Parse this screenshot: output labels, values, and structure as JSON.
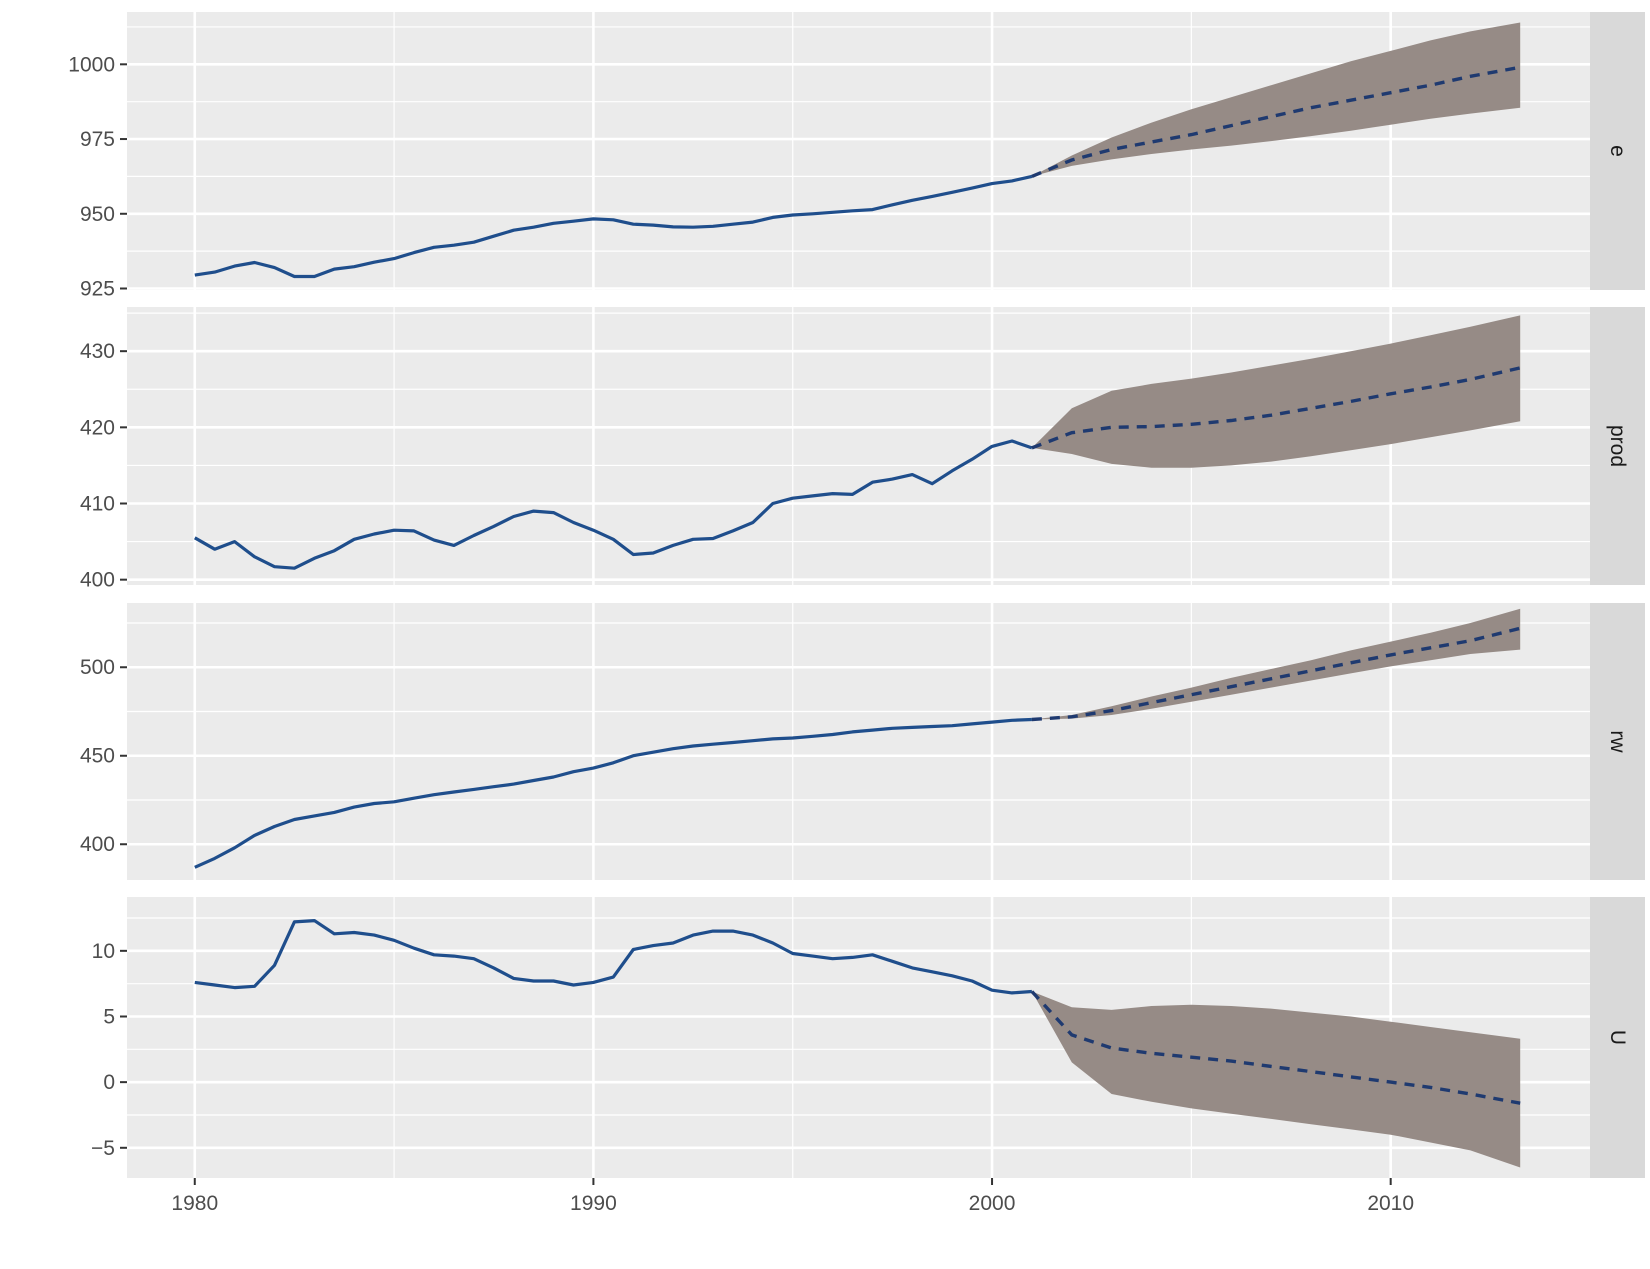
{
  "chart_data": {
    "type": "line",
    "title": "",
    "xlabel": "",
    "ylabel": "",
    "x_ticks": [
      1980,
      1990,
      2000,
      2010
    ],
    "x_range": [
      1978.3,
      2015.0
    ],
    "x_minor": [
      1985,
      1995,
      2005
    ],
    "grid": true,
    "legend": "none",
    "colors": {
      "panel_bg": "#EBEBEB",
      "strip_bg": "#D9D9D9",
      "grid": "#FFFFFF",
      "line": "#1F4E8C",
      "forecast_band": "#968B86",
      "text": "#4D4D4D"
    },
    "panels": [
      {
        "strip": "e",
        "y_range": [
          924.5,
          1017.5
        ],
        "y_ticks": [
          {
            "value": 925,
            "label": "925"
          },
          {
            "value": 950,
            "label": "950"
          },
          {
            "value": 975,
            "label": "975"
          },
          {
            "value": 1000,
            "label": "1000"
          }
        ],
        "history": {
          "x": [
            1980,
            1980.5,
            1981,
            1981.5,
            1982,
            1982.5,
            1983,
            1983.5,
            1984,
            1984.5,
            1985,
            1985.5,
            1986,
            1986.5,
            1987,
            1987.5,
            1988,
            1988.5,
            1989,
            1989.5,
            1990,
            1990.5,
            1991,
            1991.5,
            1992,
            1992.5,
            1993,
            1993.5,
            1994,
            1994.5,
            1995,
            1995.5,
            1996,
            1996.5,
            1997,
            1997.5,
            1998,
            1998.5,
            1999,
            1999.5,
            2000,
            2000.5,
            2001
          ],
          "y": [
            929.5,
            930.5,
            932.5,
            933.7,
            932,
            929,
            929,
            931.5,
            932.3,
            933.8,
            935,
            937,
            938.8,
            939.5,
            940.5,
            942.5,
            944.5,
            945.5,
            946.8,
            947.5,
            948.3,
            948,
            946.5,
            946.2,
            945.6,
            945.5,
            945.8,
            946.5,
            947.2,
            948.8,
            949.6,
            950,
            950.5,
            951,
            951.4,
            953,
            954.5,
            955.8,
            957.2,
            958.6,
            960.1,
            961,
            962.5
          ]
        },
        "forecast": {
          "x": [
            2001,
            2002,
            2003,
            2004,
            2005,
            2006,
            2007,
            2008,
            2009,
            2010,
            2011,
            2012,
            2013.25
          ],
          "mean": [
            962.5,
            968,
            971.5,
            974,
            976.5,
            979.5,
            982.5,
            985.5,
            988,
            990.5,
            993,
            996,
            999
          ],
          "lower": [
            962.5,
            966,
            968.2,
            970,
            971.5,
            972.8,
            974.3,
            976,
            977.8,
            979.8,
            981.8,
            983.5,
            985.5
          ],
          "upper": [
            962.5,
            969.5,
            975.5,
            980.5,
            985,
            989,
            993,
            997,
            1001,
            1004.5,
            1008,
            1011,
            1014
          ]
        }
      },
      {
        "strip": "prod",
        "y_range": [
          399.3,
          435.8
        ],
        "y_ticks": [
          {
            "value": 400,
            "label": "400"
          },
          {
            "value": 410,
            "label": "410"
          },
          {
            "value": 420,
            "label": "420"
          },
          {
            "value": 430,
            "label": "430"
          }
        ],
        "history": {
          "x": [
            1980,
            1980.5,
            1981,
            1981.5,
            1982,
            1982.5,
            1983,
            1983.5,
            1984,
            1984.5,
            1985,
            1985.5,
            1986,
            1986.5,
            1987,
            1987.5,
            1988,
            1988.5,
            1989,
            1989.5,
            1990,
            1990.5,
            1991,
            1991.5,
            1992,
            1992.5,
            1993,
            1993.5,
            1994,
            1994.5,
            1995,
            1995.5,
            1996,
            1996.5,
            1997,
            1997.5,
            1998,
            1998.5,
            1999,
            1999.5,
            2000,
            2000.5,
            2001
          ],
          "y": [
            405.5,
            404,
            405,
            403,
            401.7,
            401.5,
            402.8,
            403.8,
            405.3,
            406,
            406.5,
            406.4,
            405.2,
            404.5,
            405.8,
            407,
            408.3,
            409,
            408.8,
            407.5,
            406.5,
            405.3,
            403.3,
            403.5,
            404.5,
            405.3,
            405.4,
            406.4,
            407.5,
            410,
            410.7,
            411,
            411.3,
            411.2,
            412.8,
            413.2,
            413.8,
            412.6,
            414.3,
            415.8,
            417.5,
            418.2,
            417.3
          ]
        },
        "forecast": {
          "x": [
            2001,
            2002,
            2003,
            2004,
            2005,
            2006,
            2007,
            2008,
            2009,
            2010,
            2011,
            2012,
            2013.25
          ],
          "mean": [
            417.3,
            419.3,
            420,
            420.1,
            420.4,
            420.9,
            421.6,
            422.5,
            423.4,
            424.4,
            425.3,
            426.3,
            427.8
          ],
          "lower": [
            417.3,
            416.5,
            415.2,
            414.7,
            414.7,
            415,
            415.5,
            416.2,
            417,
            417.8,
            418.7,
            419.6,
            420.8
          ],
          "upper": [
            417.3,
            422.5,
            424.8,
            425.7,
            426.4,
            427.2,
            428.1,
            429,
            430,
            431,
            432.1,
            433.2,
            434.7
          ]
        }
      },
      {
        "strip": "rw",
        "y_range": [
          379.8,
          536.3
        ],
        "y_ticks": [
          {
            "value": 400,
            "label": "400"
          },
          {
            "value": 450,
            "label": "450"
          },
          {
            "value": 500,
            "label": "500"
          }
        ],
        "history": {
          "x": [
            1980,
            1980.5,
            1981,
            1981.5,
            1982,
            1982.5,
            1983,
            1983.5,
            1984,
            1984.5,
            1985,
            1985.5,
            1986,
            1986.5,
            1987,
            1987.5,
            1988,
            1988.5,
            1989,
            1989.5,
            1990,
            1990.5,
            1991,
            1991.5,
            1992,
            1992.5,
            1993,
            1993.5,
            1994,
            1994.5,
            1995,
            1995.5,
            1996,
            1996.5,
            1997,
            1997.5,
            1998,
            1998.5,
            1999,
            1999.5,
            2000,
            2000.5,
            2001
          ],
          "y": [
            387,
            392,
            398,
            405,
            410,
            414,
            416,
            418,
            421,
            423,
            424,
            426,
            428,
            429.5,
            431,
            432.5,
            434,
            436,
            438,
            441,
            443,
            446,
            450,
            452,
            454,
            455.5,
            456.5,
            457.5,
            458.5,
            459.5,
            460,
            461,
            462,
            463.5,
            464.5,
            465.5,
            466,
            466.5,
            467,
            468,
            469,
            470,
            470.5
          ]
        },
        "forecast": {
          "x": [
            2001,
            2002,
            2003,
            2004,
            2005,
            2006,
            2007,
            2008,
            2009,
            2010,
            2011,
            2012,
            2013.25
          ],
          "mean": [
            470.5,
            472,
            475.5,
            480,
            484.5,
            489,
            493.5,
            498,
            502.5,
            507,
            511,
            515,
            522
          ],
          "lower": [
            470.5,
            471,
            473,
            476.5,
            480.5,
            484.5,
            488.5,
            492.5,
            496.5,
            500.5,
            504,
            507.5,
            510
          ],
          "upper": [
            470.5,
            473,
            478,
            483.5,
            488.5,
            494,
            499,
            504,
            509.5,
            514.5,
            519.5,
            525,
            533
          ]
        }
      },
      {
        "strip": "U",
        "y_range": [
          -7.3,
          14.1
        ],
        "y_ticks": [
          {
            "value": -5,
            "label": "−5"
          },
          {
            "value": 0,
            "label": "0"
          },
          {
            "value": 5,
            "label": "5"
          },
          {
            "value": 10,
            "label": "10"
          }
        ],
        "history": {
          "x": [
            1980,
            1980.5,
            1981,
            1981.5,
            1982,
            1982.5,
            1983,
            1983.5,
            1984,
            1984.5,
            1985,
            1985.5,
            1986,
            1986.5,
            1987,
            1987.5,
            1988,
            1988.5,
            1989,
            1989.5,
            1990,
            1990.5,
            1991,
            1991.5,
            1992,
            1992.5,
            1993,
            1993.5,
            1994,
            1994.5,
            1995,
            1995.5,
            1996,
            1996.5,
            1997,
            1997.5,
            1998,
            1998.5,
            1999,
            1999.5,
            2000,
            2000.5,
            2001
          ],
          "y": [
            7.6,
            7.4,
            7.2,
            7.3,
            8.9,
            12.2,
            12.3,
            11.3,
            11.4,
            11.2,
            10.8,
            10.2,
            9.7,
            9.6,
            9.4,
            8.7,
            7.9,
            7.7,
            7.7,
            7.4,
            7.6,
            8,
            10.1,
            10.4,
            10.6,
            11.2,
            11.5,
            11.5,
            11.2,
            10.6,
            9.8,
            9.6,
            9.4,
            9.5,
            9.7,
            9.2,
            8.7,
            8.4,
            8.1,
            7.7,
            7,
            6.8,
            6.9
          ]
        },
        "forecast": {
          "x": [
            2001,
            2002,
            2003,
            2004,
            2005,
            2006,
            2007,
            2008,
            2009,
            2010,
            2011,
            2012,
            2013.25
          ],
          "mean": [
            6.9,
            3.6,
            2.6,
            2.2,
            1.9,
            1.6,
            1.2,
            0.8,
            0.4,
            0,
            -0.4,
            -0.9,
            -1.6
          ],
          "lower": [
            6.9,
            1.5,
            -0.9,
            -1.5,
            -2,
            -2.4,
            -2.8,
            -3.2,
            -3.6,
            -4,
            -4.6,
            -5.2,
            -6.5
          ],
          "upper": [
            6.9,
            5.7,
            5.5,
            5.8,
            5.9,
            5.8,
            5.6,
            5.3,
            5,
            4.6,
            4.2,
            3.8,
            3.3
          ]
        }
      }
    ]
  }
}
